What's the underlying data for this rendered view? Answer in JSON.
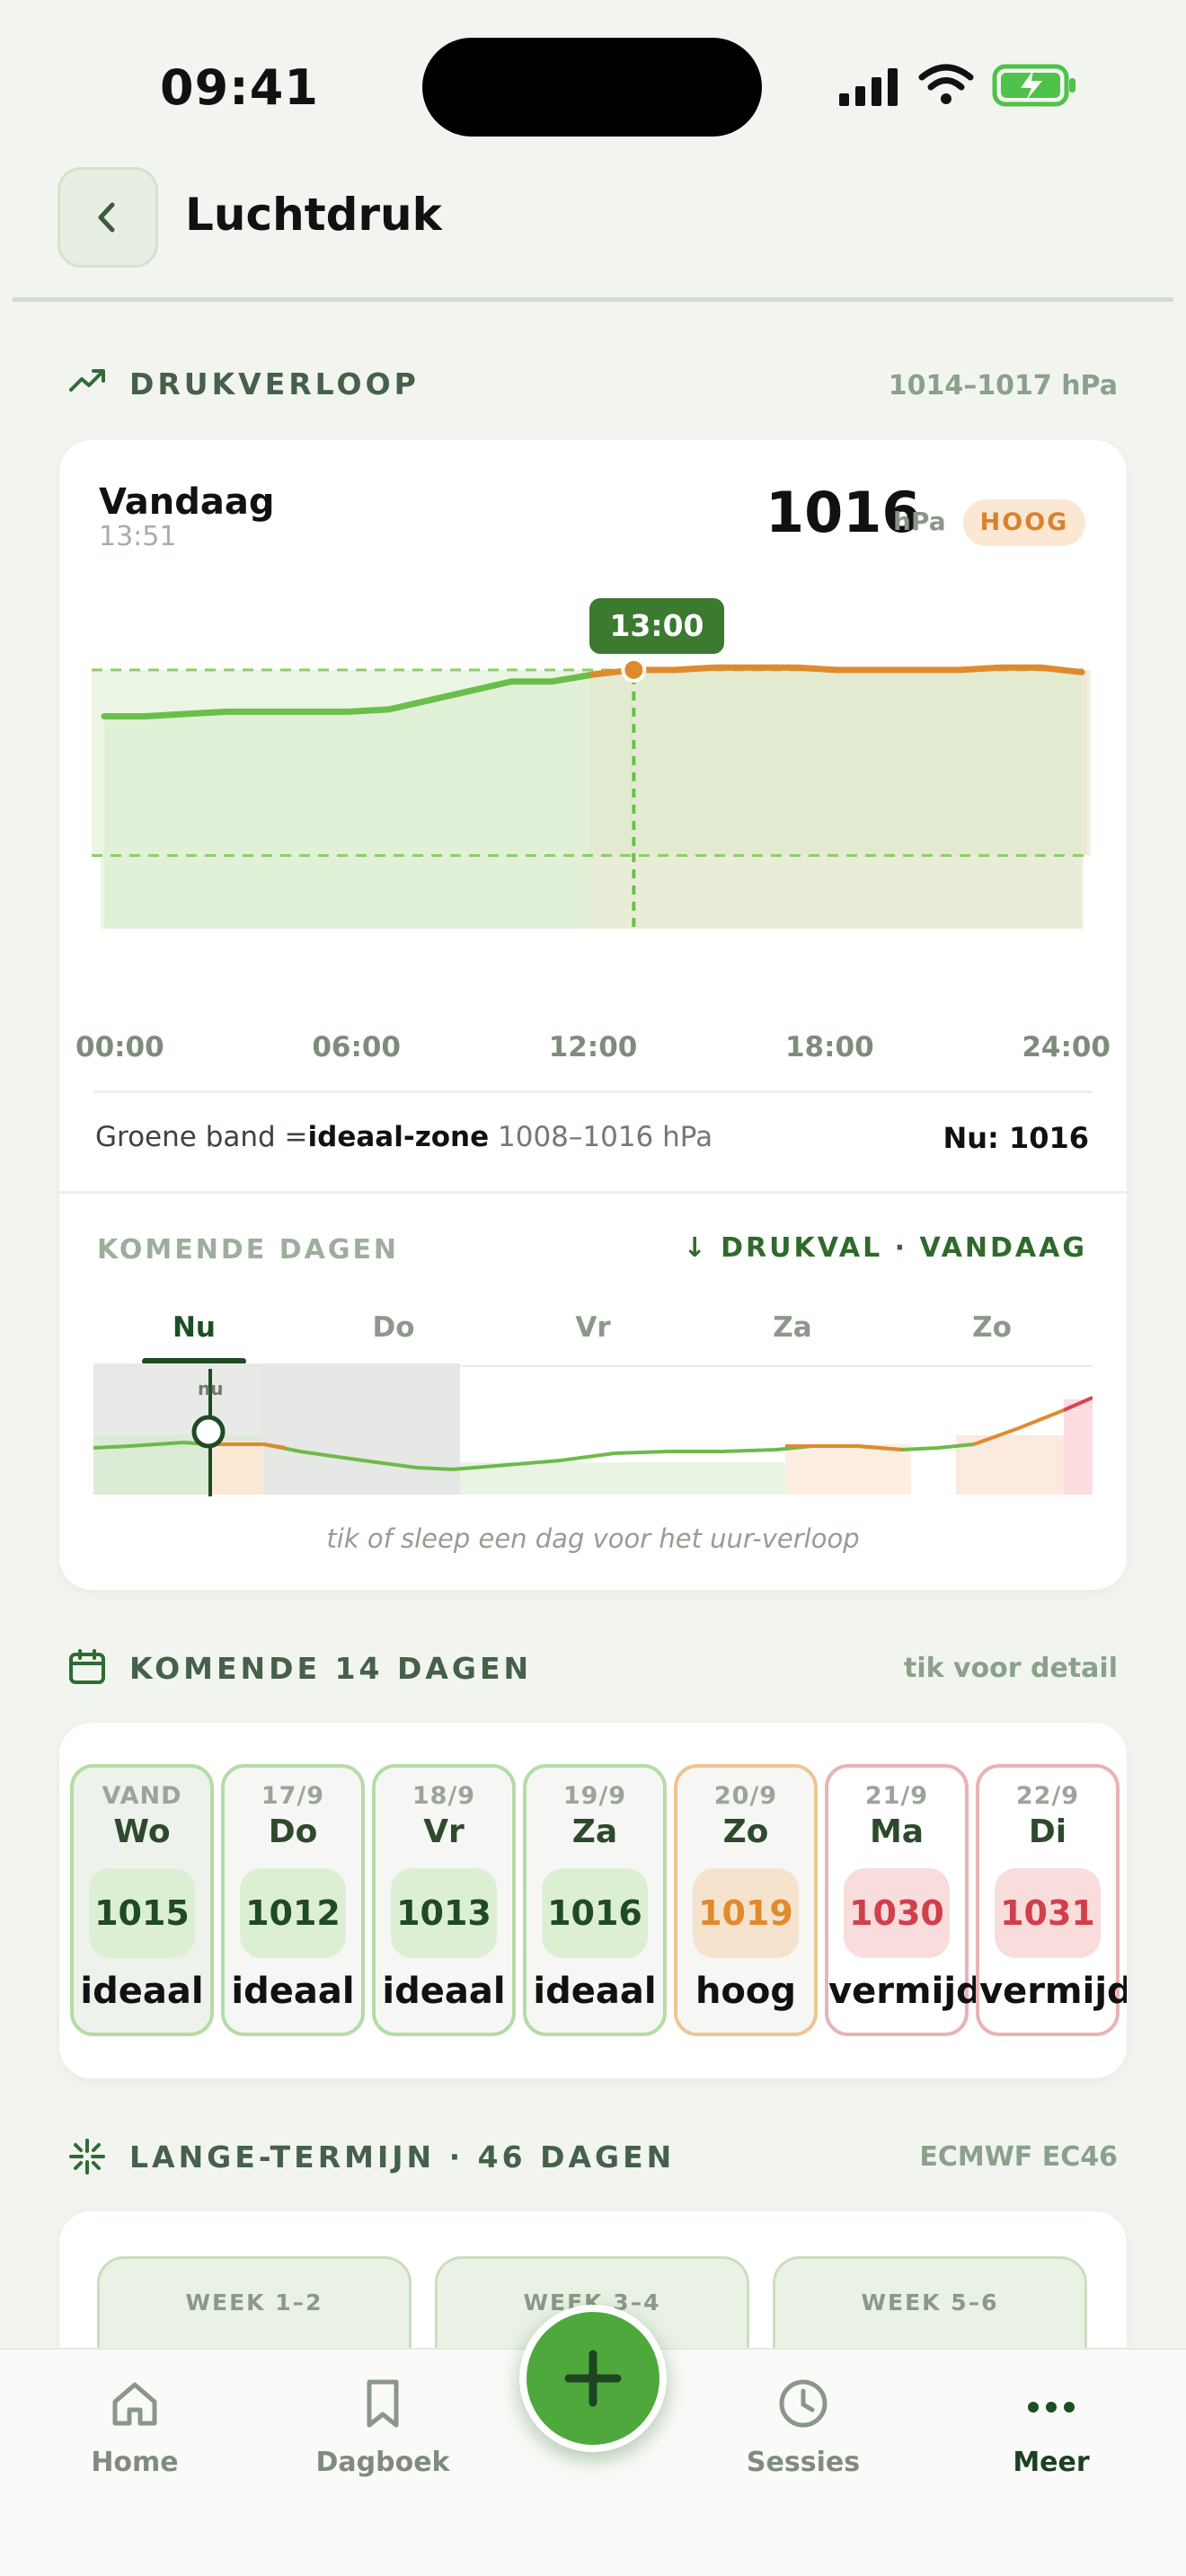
{
  "status": {
    "time": "09:41"
  },
  "header": {
    "title": "Luchtdruk"
  },
  "trend_section": {
    "title": "DRUKVERLOOP",
    "range": "1014–1017 hPa"
  },
  "today_card": {
    "label": "Vandaag",
    "time": "13:51",
    "value": "1016",
    "unit": "hPa",
    "badge": "HOOG",
    "tooltip": "13:00",
    "footer_prefix": "Groene band =",
    "footer_bold": "ideaal-zone",
    "footer_range": " 1008–1016 hPa",
    "footer_now": "Nu: 1016"
  },
  "chart_data": {
    "type": "area",
    "x_ticks": [
      "00:00",
      "06:00",
      "12:00",
      "18:00",
      "24:00"
    ],
    "x": [
      0,
      1,
      2,
      3,
      4,
      5,
      6,
      7,
      8,
      9,
      10,
      11,
      12,
      13,
      14,
      15,
      16,
      17,
      18,
      19,
      20,
      21,
      22,
      23,
      24
    ],
    "values": [
      1014.0,
      1014.0,
      1014.1,
      1014.2,
      1014.2,
      1014.2,
      1014.2,
      1014.3,
      1014.7,
      1015.1,
      1015.5,
      1015.5,
      1015.8,
      1016.0,
      1016.0,
      1016.1,
      1016.1,
      1016.1,
      1016.0,
      1016.0,
      1016.0,
      1016.0,
      1016.1,
      1016.1,
      1015.9
    ],
    "ideal_band": [
      1008,
      1016
    ],
    "ylim": [
      1005,
      1017
    ],
    "highlight_hour": 13,
    "current": 1016,
    "colors": {
      "ideal": "#6abf4b",
      "high": "#e08a2e"
    }
  },
  "coming_days": {
    "title": "KOMENDE DAGEN",
    "right": "↓ DRUKVAL · VANDAAG",
    "tabs": [
      "Nu",
      "Do",
      "Vr",
      "Za",
      "Zo"
    ],
    "now_marker": "nu",
    "hint": "tik of sleep een dag voor het uur-verloop"
  },
  "fourteen_days": {
    "title": "KOMENDE 14 DAGEN",
    "right": "tik voor detail",
    "days": [
      {
        "top": "VAND",
        "day": "Wo",
        "value": "1015",
        "label": "ideaal",
        "status": "ideal"
      },
      {
        "top": "17/9",
        "day": "Do",
        "value": "1012",
        "label": "ideaal",
        "status": "ideal"
      },
      {
        "top": "18/9",
        "day": "Vr",
        "value": "1013",
        "label": "ideaal",
        "status": "ideal"
      },
      {
        "top": "19/9",
        "day": "Za",
        "value": "1016",
        "label": "ideaal",
        "status": "ideal"
      },
      {
        "top": "20/9",
        "day": "Zo",
        "value": "1019",
        "label": "hoog",
        "status": "high"
      },
      {
        "top": "21/9",
        "day": "Ma",
        "value": "1030",
        "label": "vermijden",
        "status": "avoid"
      },
      {
        "top": "22/9",
        "day": "Di",
        "value": "1031",
        "label": "vermijden",
        "status": "avoid"
      }
    ]
  },
  "long_term": {
    "title": "LANGE-TERMIJN · 46 DAGEN",
    "right": "ECMWF EC46",
    "weeks": [
      "WEEK 1–2",
      "WEEK 3–4",
      "WEEK 5–6"
    ]
  },
  "tabbar": {
    "items": [
      "Home",
      "Dagboek",
      "Sessies",
      "Meer"
    ]
  }
}
